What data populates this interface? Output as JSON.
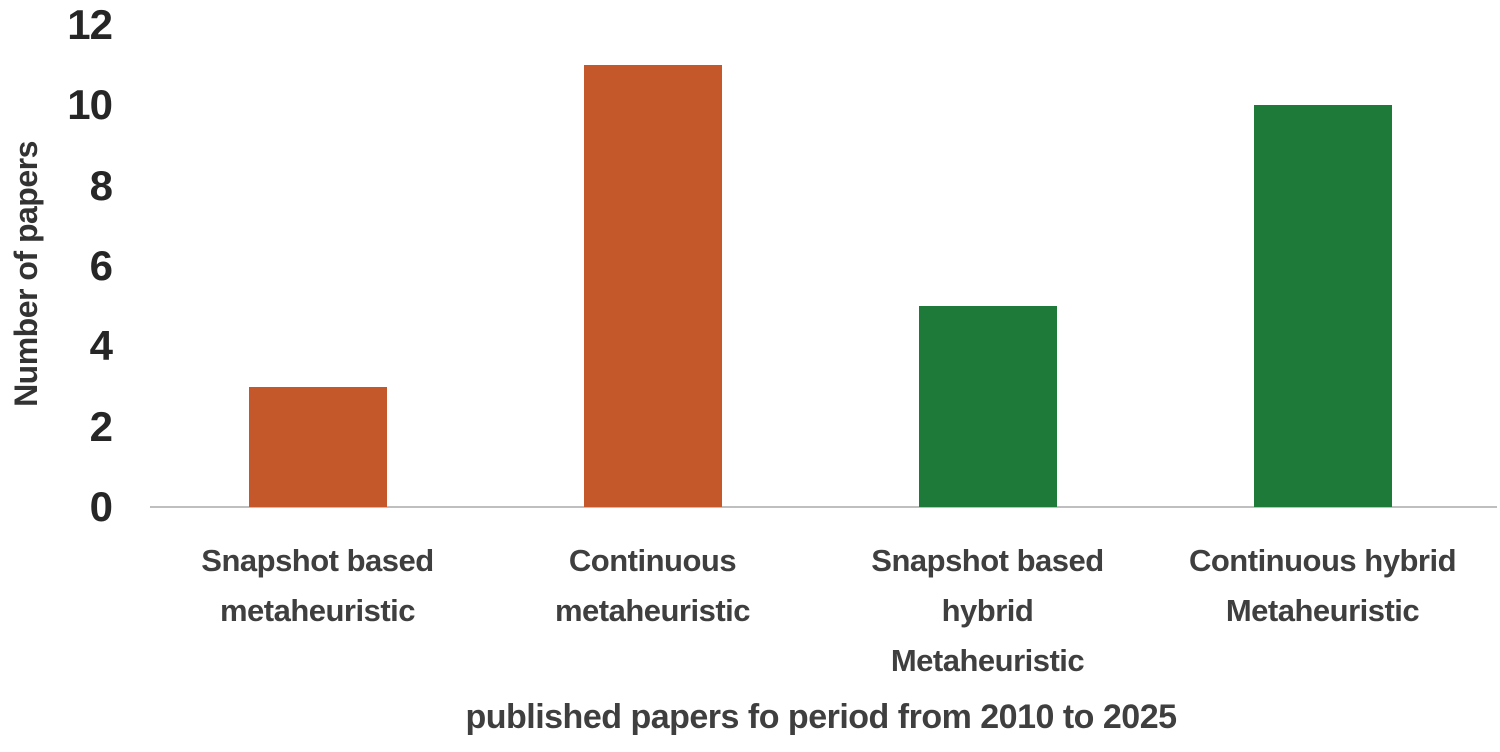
{
  "chart_data": {
    "type": "bar",
    "categories": [
      "Snapshot based metaheuristic",
      "Continuous metaheuristic",
      "Snapshot based hybrid Metaheuristic",
      "Continuous hybrid Metaheuristic"
    ],
    "category_lines": [
      [
        "Snapshot based",
        "metaheuristic"
      ],
      [
        "Continuous",
        "metaheuristic"
      ],
      [
        "Snapshot based",
        "hybrid",
        "Metaheuristic"
      ],
      [
        "Continuous hybrid",
        "Metaheuristic"
      ]
    ],
    "values": [
      3,
      11,
      5,
      10
    ],
    "bar_colors": [
      "#c4582b",
      "#c4582b",
      "#1e7a39",
      "#1e7a39"
    ],
    "title": "",
    "xlabel": "published papers fo period from 2010 to 2025",
    "ylabel": "Number of papers",
    "ylim": [
      0,
      12
    ],
    "yticks": [
      0,
      2,
      4,
      6,
      8,
      10,
      12
    ],
    "grid": false,
    "legend_position": "none"
  },
  "colors": {
    "orange_series": "#c4582b",
    "green_series": "#1e7a39",
    "axis_line": "#bfbfbf",
    "tick_text": "#262626",
    "label_text": "#3f3f3f"
  }
}
